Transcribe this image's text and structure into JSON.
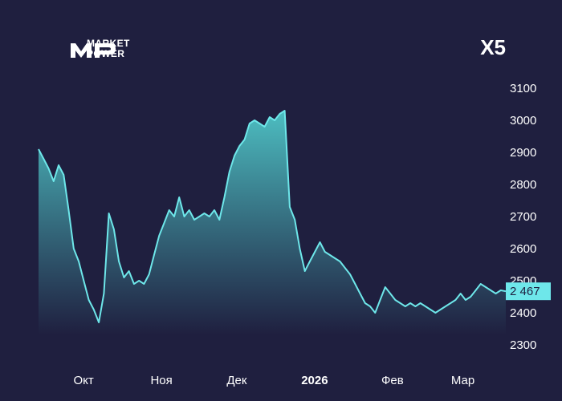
{
  "brand": {
    "line1": "MARKET",
    "line2": "POWER",
    "mark": "MP",
    "logo_icon": "market-power-logo-icon"
  },
  "ticker": "X5",
  "colors": {
    "background": "#1f1f3f",
    "line": "#6ee7ea",
    "area_top": "#4fc6c8",
    "area_bottom": "#1f1f3f",
    "price_label_bg": "#6ee7ea"
  },
  "chart_data": {
    "type": "area",
    "title": "",
    "xlabel": "",
    "ylabel": "",
    "ylim": [
      2300,
      3100
    ],
    "y_ticks": [
      "3100",
      "3000",
      "2900",
      "2800",
      "2700",
      "2600",
      "2500",
      "2400",
      "2300"
    ],
    "y_tick_values": [
      3100,
      3000,
      2900,
      2800,
      2700,
      2600,
      2500,
      2400,
      2300
    ],
    "x_ticks": [
      {
        "label": "Окт",
        "date": "2025-10-01",
        "bold": false
      },
      {
        "label": "Ноя",
        "date": "2025-11-01",
        "bold": false
      },
      {
        "label": "Дек",
        "date": "2025-12-01",
        "bold": false
      },
      {
        "label": "2026",
        "date": "2026-01-01",
        "bold": true
      },
      {
        "label": "Фев",
        "date": "2026-02-01",
        "bold": false
      },
      {
        "label": "Мар",
        "date": "2026-03-01",
        "bold": false
      }
    ],
    "x_range": [
      "2025-09-15",
      "2026-03-20"
    ],
    "grid": false,
    "last_price_label": "2 467",
    "last_price": 2467,
    "series": [
      {
        "x": [
          "2025-09-15",
          "2025-09-17",
          "2025-09-19",
          "2025-09-21",
          "2025-09-23",
          "2025-09-25",
          "2025-09-27",
          "2025-09-29",
          "2025-10-01",
          "2025-10-03",
          "2025-10-05",
          "2025-10-07",
          "2025-10-09",
          "2025-10-11",
          "2025-10-13",
          "2025-10-15",
          "2025-10-17",
          "2025-10-19",
          "2025-10-21",
          "2025-10-23",
          "2025-10-25",
          "2025-10-27",
          "2025-10-29",
          "2025-10-31",
          "2025-11-02",
          "2025-11-04",
          "2025-11-06",
          "2025-11-08",
          "2025-11-10",
          "2025-11-12",
          "2025-11-14",
          "2025-11-16",
          "2025-11-18",
          "2025-11-20",
          "2025-11-22",
          "2025-11-24",
          "2025-11-26",
          "2025-11-28",
          "2025-11-30",
          "2025-12-02",
          "2025-12-04",
          "2025-12-06",
          "2025-12-08",
          "2025-12-10",
          "2025-12-12",
          "2025-12-14",
          "2025-12-16",
          "2025-12-18",
          "2025-12-20",
          "2025-12-22",
          "2025-12-24",
          "2025-12-26",
          "2025-12-28",
          "2025-12-30",
          "2026-01-01",
          "2026-01-03",
          "2026-01-05",
          "2026-01-07",
          "2026-01-09",
          "2026-01-11",
          "2026-01-13",
          "2026-01-15",
          "2026-01-17",
          "2026-01-19",
          "2026-01-21",
          "2026-01-23",
          "2026-01-25",
          "2026-01-27",
          "2026-01-29",
          "2026-01-31",
          "2026-02-02",
          "2026-02-04",
          "2026-02-06",
          "2026-02-08",
          "2026-02-10",
          "2026-02-12",
          "2026-02-14",
          "2026-02-16",
          "2026-02-18",
          "2026-02-20",
          "2026-02-22",
          "2026-02-24",
          "2026-02-26",
          "2026-02-28",
          "2026-03-02",
          "2026-03-04",
          "2026-03-06",
          "2026-03-08",
          "2026-03-10",
          "2026-03-12",
          "2026-03-14",
          "2026-03-16",
          "2026-03-18",
          "2026-03-20"
        ],
        "values": [
          2910,
          2880,
          2850,
          2810,
          2860,
          2830,
          2720,
          2600,
          2560,
          2500,
          2440,
          2410,
          2370,
          2460,
          2710,
          2660,
          2560,
          2510,
          2530,
          2490,
          2500,
          2490,
          2520,
          2580,
          2640,
          2680,
          2720,
          2700,
          2760,
          2700,
          2720,
          2690,
          2700,
          2710,
          2700,
          2720,
          2690,
          2760,
          2840,
          2890,
          2920,
          2940,
          2990,
          3000,
          2990,
          2980,
          3010,
          3000,
          3020,
          3030,
          2730,
          2690,
          2600,
          2530,
          2560,
          2590,
          2620,
          2590,
          2580,
          2570,
          2560,
          2540,
          2520,
          2490,
          2460,
          2430,
          2420,
          2400,
          2440,
          2480,
          2460,
          2440,
          2430,
          2420,
          2430,
          2420,
          2430,
          2420,
          2410,
          2400,
          2410,
          2420,
          2430,
          2440,
          2460,
          2440,
          2450,
          2470,
          2490,
          2480,
          2470,
          2460,
          2470,
          2467
        ]
      }
    ]
  }
}
